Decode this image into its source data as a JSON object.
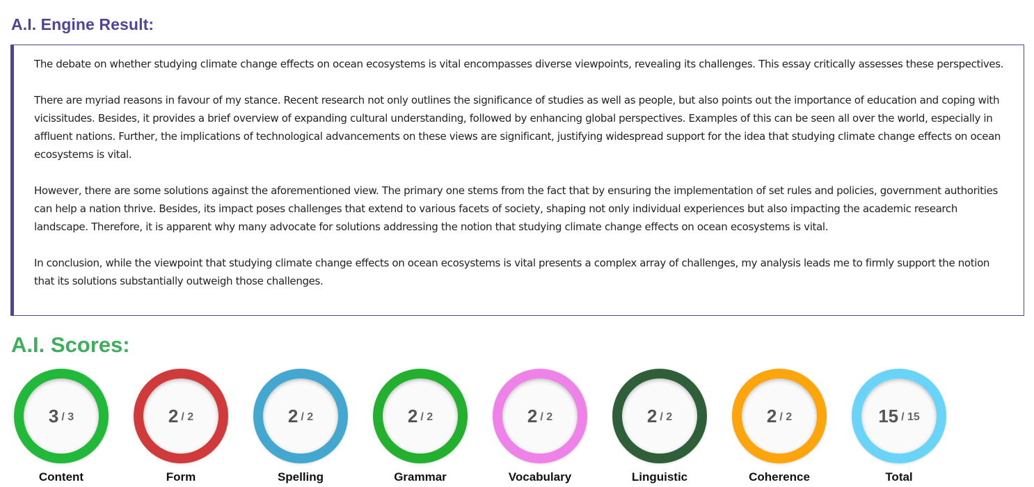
{
  "result": {
    "title": "A.I. Engine Result:",
    "paragraphs": [
      "The debate on whether studying climate change effects on ocean ecosystems is vital encompasses diverse viewpoints, revealing its challenges. This essay critically assesses these perspectives.",
      "There are myriad reasons in favour of my stance. Recent research not only outlines the significance of studies as well as people, but also points out the importance of education and coping with vicissitudes. Besides, it provides a brief overview of expanding cultural understanding, followed by enhancing global perspectives. Examples of this can be seen all over the world, especially in affluent nations. Further, the implications of technological advancements on these views are significant, justifying widespread support for the idea that studying climate change effects on ocean ecosystems is vital.",
      "However, there are some solutions against the aforementioned view. The primary one stems from the fact that by ensuring the implementation of set rules and policies, government authorities can help a nation thrive. Besides, its impact poses challenges that extend to various facets of society, shaping not only individual experiences but also impacting the academic research landscape. Therefore, it is apparent why many advocate for solutions addressing the notion that studying climate change effects on ocean ecosystems is vital.",
      "In conclusion, while the viewpoint that studying climate change effects on ocean ecosystems is vital presents a complex array of challenges, my analysis leads me to firmly support the notion that its solutions substantially outweigh those challenges."
    ]
  },
  "scores": {
    "title": "A.I. Scores:",
    "items": [
      {
        "label": "Content",
        "value": "3",
        "max": "/ 3",
        "color": "#22b83a"
      },
      {
        "label": "Form",
        "value": "2",
        "max": "/ 2",
        "color": "#d03a3a"
      },
      {
        "label": "Spelling",
        "value": "2",
        "max": "/ 2",
        "color": "#44a7d0"
      },
      {
        "label": "Grammar",
        "value": "2",
        "max": "/ 2",
        "color": "#22b02e"
      },
      {
        "label": "Vocabulary",
        "value": "2",
        "max": "/ 2",
        "color": "#ee82e8"
      },
      {
        "label": "Linguistic",
        "value": "2",
        "max": "/ 2",
        "color": "#2f5f38"
      },
      {
        "label": "Coherence",
        "value": "2",
        "max": "/ 2",
        "color": "#fda50a"
      },
      {
        "label": "Total",
        "value": "15",
        "max": "/ 15",
        "color": "#6ad4f8"
      }
    ]
  }
}
